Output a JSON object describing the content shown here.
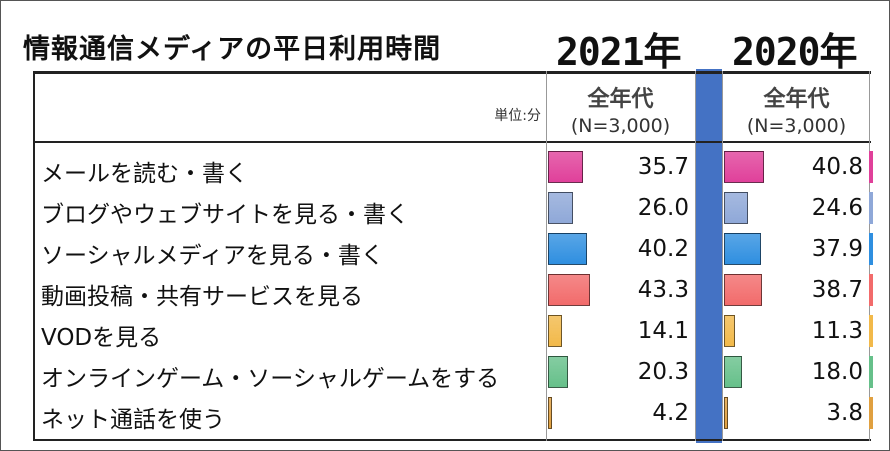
{
  "title": "情報通信メディアの平日利用時間",
  "unit_label": "単位:分",
  "columns": [
    {
      "year": "2021年",
      "header": "全年代",
      "sample": "(N=3,000)"
    },
    {
      "year": "2020年",
      "header": "全年代",
      "sample": "(N=3,000)"
    }
  ],
  "chart_data": {
    "type": "bar",
    "title": "情報通信メディアの平日利用時間",
    "unit": "単位:分",
    "categories": [
      "メールを読む・書く",
      "ブログやウェブサイトを見る・書く",
      "ソーシャルメディアを見る・書く",
      "動画投稿・共有サービスを見る",
      "VODを見る",
      "オンラインゲーム・ソーシャルゲームをする",
      "ネット通話を使う"
    ],
    "series": [
      {
        "name": "2021年",
        "values": [
          35.7,
          26.0,
          40.2,
          43.3,
          14.1,
          20.3,
          4.2
        ]
      },
      {
        "name": "2020年",
        "values": [
          40.8,
          24.6,
          37.9,
          38.7,
          11.3,
          18.0,
          3.8
        ]
      }
    ],
    "colors": [
      "#e0409a",
      "#8fa8d8",
      "#2f8fe0",
      "#f26b6b",
      "#f2b94a",
      "#66c08a",
      "#e0a040"
    ],
    "value_labels": {
      "2021年": [
        "35.7",
        "26.0",
        "40.2",
        "43.3",
        "14.1",
        "20.3",
        "4.2"
      ],
      "2020年": [
        "40.8",
        "24.6",
        "37.9",
        "38.7",
        "11.3",
        "18.0",
        "3.8"
      ]
    }
  }
}
